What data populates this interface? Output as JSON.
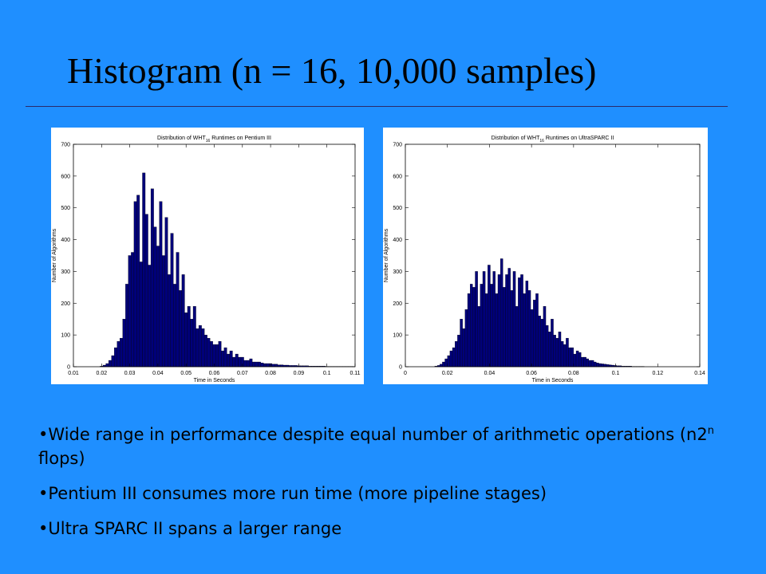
{
  "slide": {
    "title": "Histogram (n = 16, 10,000 samples)",
    "bullets": [
      {
        "before": "•Wide range in performance despite equal number of arithmetic operations (n2",
        "sup": "n",
        "after": " flops)"
      },
      {
        "before": "•Pentium III consumes more run time (more pipeline stages)",
        "sup": "",
        "after": ""
      },
      {
        "before": "•Ultra SPARC II spans a larger range",
        "sup": "",
        "after": ""
      }
    ]
  },
  "colors": {
    "background": "#1f8fff",
    "bar_fill": "#00007a",
    "bar_edge": "#000000",
    "panel": "#ffffff"
  },
  "chart_data": [
    {
      "type": "bar",
      "title_before": "Distribution of WHT",
      "title_sub": "16",
      "title_after": " Runtimes on Pentium III",
      "xlabel": "Time in Seconds",
      "ylabel": "Number of Algorithms",
      "xlim": [
        0.01,
        0.11
      ],
      "ylim": [
        0,
        700
      ],
      "xticks": [
        0.01,
        0.02,
        0.03,
        0.04,
        0.05,
        0.06,
        0.07,
        0.08,
        0.09,
        0.1,
        0.11
      ],
      "xtick_labels": [
        "0.01",
        "0.02",
        "0.03",
        "0.04",
        "0.05",
        "0.06",
        "0.07",
        "0.08",
        "0.09",
        "0.1",
        "0.11"
      ],
      "yticks": [
        0,
        100,
        200,
        300,
        400,
        500,
        600,
        700
      ],
      "ytick_labels": [
        "0",
        "100",
        "200",
        "300",
        "400",
        "500",
        "600",
        "700"
      ],
      "bin_width": 0.001,
      "bin_start": 0.0195,
      "values": [
        2,
        5,
        10,
        20,
        35,
        60,
        80,
        90,
        150,
        260,
        350,
        360,
        520,
        540,
        330,
        610,
        480,
        320,
        560,
        440,
        380,
        520,
        350,
        470,
        290,
        420,
        260,
        360,
        240,
        290,
        170,
        190,
        150,
        190,
        120,
        130,
        120,
        100,
        90,
        80,
        70,
        70,
        80,
        50,
        60,
        40,
        50,
        30,
        40,
        30,
        30,
        20,
        20,
        25,
        15,
        15,
        15,
        12,
        10,
        10,
        10,
        8,
        8,
        6,
        6,
        5,
        5,
        4,
        4,
        4,
        3,
        3,
        3,
        3,
        2,
        2,
        2,
        2,
        2,
        2,
        1,
        1,
        1,
        1,
        1,
        1,
        1,
        1,
        1,
        1
      ]
    },
    {
      "type": "bar",
      "title_before": "Distribution of WHT",
      "title_sub": "16",
      "title_after": " Runtimes on UltraSPARC II",
      "xlabel": "Time in Seconds",
      "ylabel": "Number of Algorithms",
      "xlim": [
        0,
        0.14
      ],
      "ylim": [
        0,
        700
      ],
      "xticks": [
        0,
        0.02,
        0.04,
        0.06,
        0.08,
        0.1,
        0.12,
        0.14
      ],
      "xtick_labels": [
        "0",
        "0.02",
        "0.04",
        "0.06",
        "0.08",
        "0.1",
        "0.12",
        "0.14"
      ],
      "yticks": [
        0,
        100,
        200,
        300,
        400,
        500,
        600,
        700
      ],
      "ytick_labels": [
        "0",
        "100",
        "200",
        "300",
        "400",
        "500",
        "600",
        "700"
      ],
      "bin_width": 0.0012,
      "bin_start": 0.014,
      "values": [
        2,
        4,
        8,
        15,
        25,
        35,
        50,
        60,
        80,
        100,
        150,
        120,
        180,
        230,
        260,
        250,
        300,
        190,
        260,
        300,
        230,
        320,
        260,
        300,
        230,
        290,
        340,
        250,
        290,
        310,
        240,
        300,
        190,
        280,
        290,
        230,
        270,
        240,
        180,
        210,
        230,
        160,
        150,
        190,
        130,
        110,
        150,
        100,
        90,
        110,
        80,
        70,
        90,
        60,
        60,
        40,
        50,
        45,
        30,
        30,
        25,
        20,
        20,
        15,
        12,
        10,
        9,
        8,
        7,
        6,
        5,
        4,
        3,
        3,
        2,
        2,
        2,
        2,
        1,
        1,
        1,
        1,
        1
      ]
    }
  ]
}
